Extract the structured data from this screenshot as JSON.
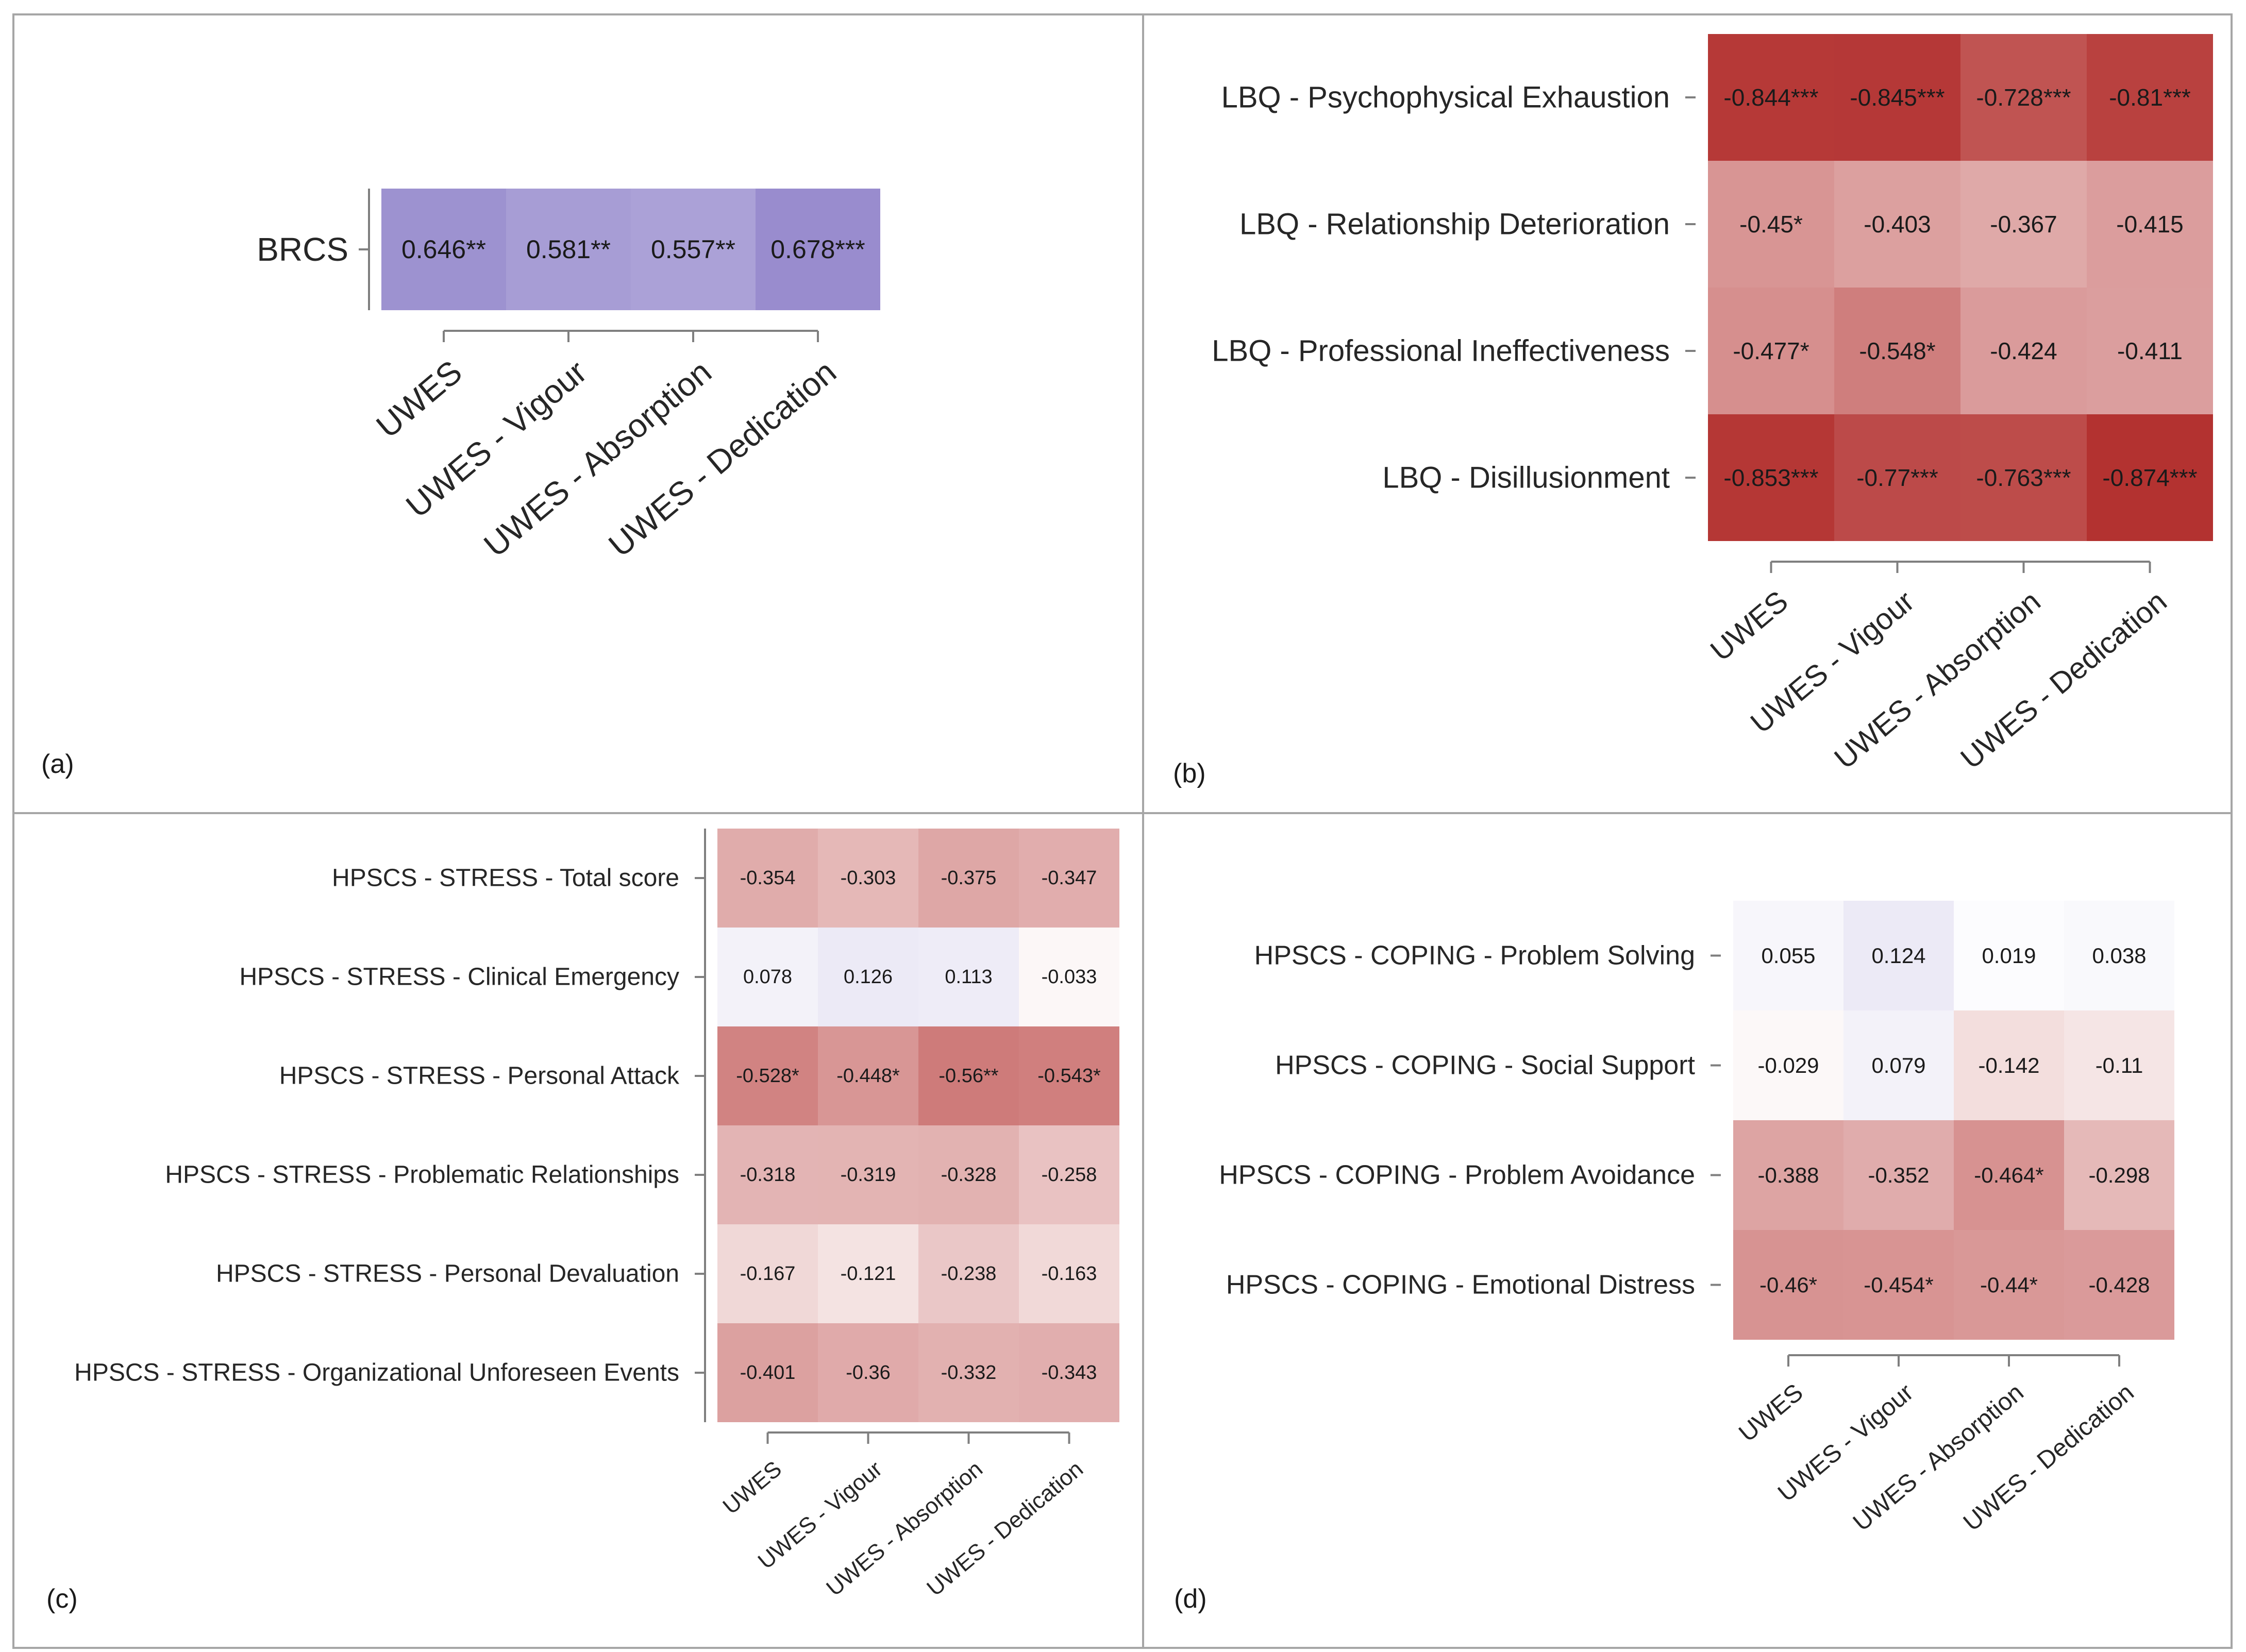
{
  "figure": {
    "panel_tags": [
      "(a)",
      "(b)",
      "(c)",
      "(d)"
    ]
  },
  "chart_data": [
    {
      "type": "heatmap",
      "panel": "(a)",
      "title": "",
      "colormap": "diverging-blue-white-red",
      "value_range": [
        -1,
        1
      ],
      "rows": [
        "BRCS"
      ],
      "columns": [
        "UWES",
        "UWES - Vigour",
        "UWES - Absorption",
        "UWES - Dedication"
      ],
      "values": [
        [
          0.646,
          0.581,
          0.557,
          0.678
        ]
      ],
      "labels": [
        [
          "0.646**",
          "0.581**",
          "0.557**",
          "0.678***"
        ]
      ]
    },
    {
      "type": "heatmap",
      "panel": "(b)",
      "title": "",
      "colormap": "diverging-blue-white-red",
      "value_range": [
        -1,
        1
      ],
      "rows": [
        "LBQ - Psychophysical Exhaustion",
        "LBQ - Relationship Deterioration",
        "LBQ - Professional Ineffectiveness",
        "LBQ - Disillusionment"
      ],
      "columns": [
        "UWES",
        "UWES - Vigour",
        "UWES - Absorption",
        "UWES - Dedication"
      ],
      "values": [
        [
          -0.844,
          -0.845,
          -0.728,
          -0.81
        ],
        [
          -0.45,
          -0.403,
          -0.367,
          -0.415
        ],
        [
          -0.477,
          -0.548,
          -0.424,
          -0.411
        ],
        [
          -0.853,
          -0.77,
          -0.763,
          -0.874
        ]
      ],
      "labels": [
        [
          "-0.844***",
          "-0.845***",
          "-0.728***",
          "-0.81***"
        ],
        [
          "-0.45*",
          "-0.403",
          "-0.367",
          "-0.415"
        ],
        [
          "-0.477*",
          "-0.548*",
          "-0.424",
          "-0.411"
        ],
        [
          "-0.853***",
          "-0.77***",
          "-0.763***",
          "-0.874***"
        ]
      ]
    },
    {
      "type": "heatmap",
      "panel": "(c)",
      "title": "",
      "colormap": "diverging-blue-white-red",
      "value_range": [
        -1,
        1
      ],
      "rows": [
        "HPSCS - STRESS - Total score",
        "HPSCS - STRESS - Clinical Emergency",
        "HPSCS - STRESS - Personal Attack",
        "HPSCS - STRESS - Problematic Relationships",
        "HPSCS - STRESS - Personal Devaluation",
        "HPSCS - STRESS - Organizational Unforeseen Events"
      ],
      "columns": [
        "UWES",
        "UWES - Vigour",
        "UWES - Absorption",
        "UWES - Dedication"
      ],
      "values": [
        [
          -0.354,
          -0.303,
          -0.375,
          -0.347
        ],
        [
          0.078,
          0.126,
          0.113,
          -0.033
        ],
        [
          -0.528,
          -0.448,
          -0.56,
          -0.543
        ],
        [
          -0.318,
          -0.319,
          -0.328,
          -0.258
        ],
        [
          -0.167,
          -0.121,
          -0.238,
          -0.163
        ],
        [
          -0.401,
          -0.36,
          -0.332,
          -0.343
        ]
      ],
      "labels": [
        [
          "-0.354",
          "-0.303",
          "-0.375",
          "-0.347"
        ],
        [
          "0.078",
          "0.126",
          "0.113",
          "-0.033"
        ],
        [
          "-0.528*",
          "-0.448*",
          "-0.56**",
          "-0.543*"
        ],
        [
          "-0.318",
          "-0.319",
          "-0.328",
          "-0.258"
        ],
        [
          "-0.167",
          "-0.121",
          "-0.238",
          "-0.163"
        ],
        [
          "-0.401",
          "-0.36",
          "-0.332",
          "-0.343"
        ]
      ]
    },
    {
      "type": "heatmap",
      "panel": "(d)",
      "title": "",
      "colormap": "diverging-blue-white-red",
      "value_range": [
        -1,
        1
      ],
      "rows": [
        "HPSCS - COPING - Problem Solving",
        "HPSCS - COPING - Social Support",
        "HPSCS - COPING - Problem Avoidance",
        "HPSCS - COPING - Emotional Distress"
      ],
      "columns": [
        "UWES",
        "UWES - Vigour",
        "UWES - Absorption",
        "UWES - Dedication"
      ],
      "values": [
        [
          0.055,
          0.124,
          0.019,
          0.038
        ],
        [
          -0.029,
          0.079,
          -0.142,
          -0.11
        ],
        [
          -0.388,
          -0.352,
          -0.464,
          -0.298
        ],
        [
          -0.46,
          -0.454,
          -0.44,
          -0.428
        ]
      ],
      "labels": [
        [
          "0.055",
          "0.124",
          "0.019",
          "0.038"
        ],
        [
          "-0.029",
          "0.079",
          "-0.142",
          "-0.11"
        ],
        [
          "-0.388",
          "-0.352",
          "-0.464*",
          "-0.298"
        ],
        [
          "-0.46*",
          "-0.454*",
          "-0.44*",
          "-0.428"
        ]
      ]
    }
  ]
}
